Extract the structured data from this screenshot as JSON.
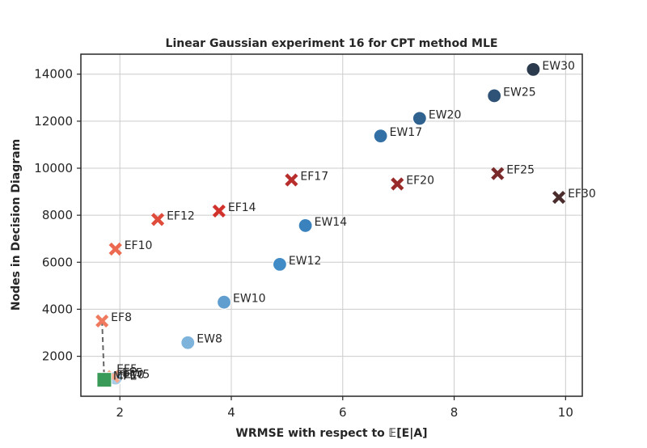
{
  "chart_data": {
    "type": "scatter",
    "title": "Linear Gaussian experiment 16 for CPT method MLE",
    "xlabel": "WRMSE with respect to 𝔼[E|A]",
    "ylabel": "Nodes in Decision Diagram",
    "xlim": [
      1.3,
      10.3
    ],
    "ylim": [
      300,
      14850
    ],
    "xticks": [
      2,
      4,
      6,
      8,
      10
    ],
    "yticks": [
      2000,
      4000,
      6000,
      8000,
      10000,
      12000,
      14000
    ],
    "grid": true,
    "points": [
      {
        "label": "EW30",
        "x": 9.42,
        "y": 14200,
        "marker": "circle",
        "color": "#2b3a4d"
      },
      {
        "label": "EW25",
        "x": 8.72,
        "y": 13080,
        "marker": "circle",
        "color": "#2f5376"
      },
      {
        "label": "EW20",
        "x": 7.38,
        "y": 12120,
        "marker": "circle",
        "color": "#30628f"
      },
      {
        "label": "EW17",
        "x": 6.68,
        "y": 11370,
        "marker": "circle",
        "color": "#3370a5"
      },
      {
        "label": "EW14",
        "x": 5.33,
        "y": 7560,
        "marker": "circle",
        "color": "#3a82bd"
      },
      {
        "label": "EW12",
        "x": 4.87,
        "y": 5910,
        "marker": "circle",
        "color": "#418bc6"
      },
      {
        "label": "EW10",
        "x": 3.87,
        "y": 4300,
        "marker": "circle",
        "color": "#5f9ecf"
      },
      {
        "label": "EW8",
        "x": 3.22,
        "y": 2580,
        "marker": "circle",
        "color": "#7eb3db"
      },
      {
        "label": "EW5",
        "x": 1.92,
        "y": 1070,
        "marker": "circle",
        "color": "#a8cce6"
      },
      {
        "label": "EF30",
        "x": 9.88,
        "y": 8760,
        "marker": "x",
        "color": "#4a2c2c"
      },
      {
        "label": "EF25",
        "x": 8.78,
        "y": 9770,
        "marker": "x",
        "color": "#7a2a2a"
      },
      {
        "label": "EF20",
        "x": 6.98,
        "y": 9330,
        "marker": "x",
        "color": "#9a2b2b"
      },
      {
        "label": "EF17",
        "x": 5.08,
        "y": 9500,
        "marker": "x",
        "color": "#b72e2c"
      },
      {
        "label": "EF14",
        "x": 3.78,
        "y": 8180,
        "marker": "x",
        "color": "#d2322c"
      },
      {
        "label": "EF12",
        "x": 2.68,
        "y": 7820,
        "marker": "x",
        "color": "#e04c3c"
      },
      {
        "label": "EF10",
        "x": 1.92,
        "y": 6560,
        "marker": "x",
        "color": "#ec6a50"
      },
      {
        "label": "EF8",
        "x": 1.68,
        "y": 3500,
        "marker": "x",
        "color": "#ef7a5e"
      },
      {
        "label": "EF5",
        "x": 1.88,
        "y": 1140,
        "marker": "x",
        "color": "#f7a88a"
      },
      {
        "label": "MPE",
        "x": 1.72,
        "y": 1000,
        "marker": "square",
        "color": "#3a9a58"
      }
    ],
    "labels_extra": [
      {
        "text": "EF5",
        "x": 1.94,
        "y": 1290
      },
      {
        "text": "EF10",
        "x": 1.94,
        "y": 1050
      }
    ],
    "dashed_line": [
      [
        1.68,
        3500
      ],
      [
        1.72,
        1000
      ]
    ],
    "axis_color": "#262626",
    "grid_color": "#cccccc"
  }
}
